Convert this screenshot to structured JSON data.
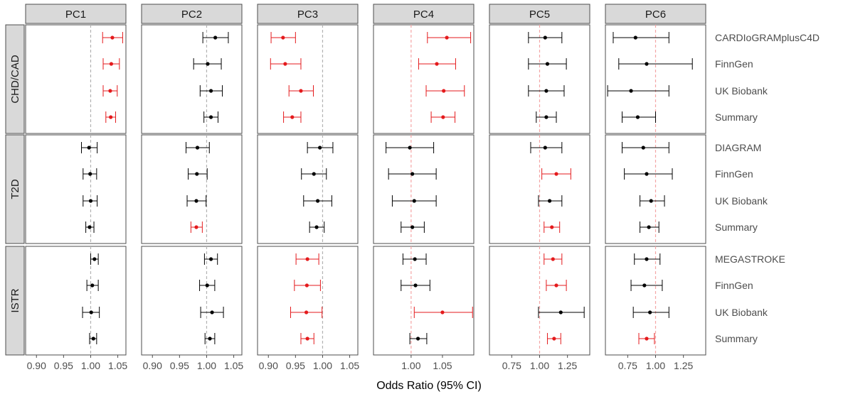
{
  "chart_data": {
    "type": "forest",
    "xlabel": "Odds Ratio (95% CI)",
    "reference_value": 1.0,
    "colors": {
      "significant": "#e41a1c",
      "non_significant": "#000000",
      "reference_line": "#f4a6a6",
      "reference_line_pc1_3": "#b3b3b3",
      "strip_fill": "#d9d9d9",
      "panel_border": "#4d4d4d"
    },
    "columns": [
      {
        "label": "PC1",
        "xlim": [
          0.88,
          1.065
        ],
        "ticks": [
          0.9,
          0.95,
          1.0,
          1.05
        ],
        "tick_labels": [
          "0.90",
          "0.95",
          "1.00",
          "1.05"
        ]
      },
      {
        "label": "PC2",
        "xlim": [
          0.88,
          1.065
        ],
        "ticks": [
          0.9,
          0.95,
          1.0,
          1.05
        ],
        "tick_labels": [
          "0.90",
          "0.95",
          "1.00",
          "1.05"
        ]
      },
      {
        "label": "PC3",
        "xlim": [
          0.88,
          1.065
        ],
        "ticks": [
          0.9,
          0.95,
          1.0,
          1.05
        ],
        "tick_labels": [
          "0.90",
          "0.95",
          "1.00",
          "1.05"
        ]
      },
      {
        "label": "PC4",
        "xlim": [
          0.94,
          1.1
        ],
        "ticks": [
          1.0,
          1.05
        ],
        "tick_labels": [
          "1.00",
          "1.05"
        ]
      },
      {
        "label": "PC5",
        "xlim": [
          0.55,
          1.45
        ],
        "ticks": [
          0.75,
          1.0,
          1.25
        ],
        "tick_labels": [
          "0.75",
          "1.00",
          "1.25"
        ]
      },
      {
        "label": "PC6",
        "xlim": [
          0.55,
          1.45
        ],
        "ticks": [
          0.75,
          1.0,
          1.25
        ],
        "tick_labels": [
          "0.75",
          "1.00",
          "1.25"
        ]
      }
    ],
    "rows": [
      {
        "label": "CHD/CAD",
        "studies": [
          "CARDIoGRAMplusC4D",
          "FinnGen",
          "UK Biobank",
          "Summary"
        ],
        "data": [
          [
            {
              "or": 1.04,
              "lo": 1.022,
              "hi": 1.059,
              "sig": true
            },
            {
              "or": 1.038,
              "lo": 1.023,
              "hi": 1.053,
              "sig": true
            },
            {
              "or": 1.036,
              "lo": 1.023,
              "hi": 1.049,
              "sig": true
            },
            {
              "or": 1.037,
              "lo": 1.028,
              "hi": 1.046,
              "sig": true
            }
          ],
          [
            {
              "or": 1.016,
              "lo": 0.993,
              "hi": 1.04,
              "sig": false
            },
            {
              "or": 1.002,
              "lo": 0.976,
              "hi": 1.027,
              "sig": false
            },
            {
              "or": 1.008,
              "lo": 0.988,
              "hi": 1.029,
              "sig": false
            },
            {
              "or": 1.008,
              "lo": 0.995,
              "hi": 1.021,
              "sig": false
            }
          ],
          [
            {
              "or": 0.927,
              "lo": 0.905,
              "hi": 0.95,
              "sig": true
            },
            {
              "or": 0.931,
              "lo": 0.904,
              "hi": 0.96,
              "sig": true
            },
            {
              "or": 0.96,
              "lo": 0.938,
              "hi": 0.983,
              "sig": true
            },
            {
              "or": 0.944,
              "lo": 0.928,
              "hi": 0.96,
              "sig": true
            }
          ],
          [
            {
              "or": 1.057,
              "lo": 1.026,
              "hi": 1.095,
              "sig": true
            },
            {
              "or": 1.041,
              "lo": 1.012,
              "hi": 1.071,
              "sig": true
            },
            {
              "or": 1.052,
              "lo": 1.024,
              "hi": 1.085,
              "sig": true
            },
            {
              "or": 1.051,
              "lo": 1.032,
              "hi": 1.07,
              "sig": true
            }
          ],
          [
            {
              "or": 1.05,
              "lo": 0.9,
              "hi": 1.2,
              "sig": false
            },
            {
              "or": 1.07,
              "lo": 0.9,
              "hi": 1.24,
              "sig": false
            },
            {
              "or": 1.06,
              "lo": 0.9,
              "hi": 1.22,
              "sig": false
            },
            {
              "or": 1.06,
              "lo": 0.97,
              "hi": 1.15,
              "sig": false
            }
          ],
          [
            {
              "or": 0.82,
              "lo": 0.62,
              "hi": 1.12,
              "sig": false
            },
            {
              "or": 0.92,
              "lo": 0.67,
              "hi": 1.33,
              "sig": false
            },
            {
              "or": 0.78,
              "lo": 0.57,
              "hi": 1.12,
              "sig": false
            },
            {
              "or": 0.84,
              "lo": 0.7,
              "hi": 1.0,
              "sig": false
            }
          ]
        ]
      },
      {
        "label": "T2D",
        "studies": [
          "DIAGRAM",
          "FinnGen",
          "UK Biobank",
          "Summary"
        ],
        "data": [
          [
            {
              "or": 0.997,
              "lo": 0.983,
              "hi": 1.012,
              "sig": false
            },
            {
              "or": 0.999,
              "lo": 0.986,
              "hi": 1.011,
              "sig": false
            },
            {
              "or": 1.0,
              "lo": 0.986,
              "hi": 1.012,
              "sig": false
            },
            {
              "or": 0.998,
              "lo": 0.991,
              "hi": 1.006,
              "sig": false
            }
          ],
          [
            {
              "or": 0.983,
              "lo": 0.962,
              "hi": 1.005,
              "sig": false
            },
            {
              "or": 0.982,
              "lo": 0.966,
              "hi": 1.001,
              "sig": false
            },
            {
              "or": 0.981,
              "lo": 0.964,
              "hi": 0.999,
              "sig": false
            },
            {
              "or": 0.981,
              "lo": 0.971,
              "hi": 0.992,
              "sig": true
            }
          ],
          [
            {
              "or": 0.995,
              "lo": 0.972,
              "hi": 1.019,
              "sig": false
            },
            {
              "or": 0.984,
              "lo": 0.961,
              "hi": 1.007,
              "sig": false
            },
            {
              "or": 0.991,
              "lo": 0.965,
              "hi": 1.017,
              "sig": false
            },
            {
              "or": 0.989,
              "lo": 0.976,
              "hi": 1.003,
              "sig": false
            }
          ],
          [
            {
              "or": 0.998,
              "lo": 0.96,
              "hi": 1.036,
              "sig": false
            },
            {
              "or": 1.002,
              "lo": 0.964,
              "hi": 1.04,
              "sig": false
            },
            {
              "or": 1.005,
              "lo": 0.97,
              "hi": 1.04,
              "sig": false
            },
            {
              "or": 1.002,
              "lo": 0.984,
              "hi": 1.021,
              "sig": false
            }
          ],
          [
            {
              "or": 1.05,
              "lo": 0.92,
              "hi": 1.2,
              "sig": false
            },
            {
              "or": 1.15,
              "lo": 1.02,
              "hi": 1.28,
              "sig": true
            },
            {
              "or": 1.09,
              "lo": 0.99,
              "hi": 1.2,
              "sig": false
            },
            {
              "or": 1.11,
              "lo": 1.04,
              "hi": 1.18,
              "sig": true
            }
          ],
          [
            {
              "or": 0.89,
              "lo": 0.7,
              "hi": 1.12,
              "sig": false
            },
            {
              "or": 0.92,
              "lo": 0.72,
              "hi": 1.15,
              "sig": false
            },
            {
              "or": 0.96,
              "lo": 0.86,
              "hi": 1.08,
              "sig": false
            },
            {
              "or": 0.94,
              "lo": 0.86,
              "hi": 1.03,
              "sig": false
            }
          ]
        ]
      },
      {
        "label": "ISTR",
        "studies": [
          "MEGASTROKE",
          "FinnGen",
          "UK Biobank",
          "Summary"
        ],
        "data": [
          [
            {
              "or": 1.007,
              "lo": 1.0,
              "hi": 1.014,
              "sig": false
            },
            {
              "or": 1.003,
              "lo": 0.993,
              "hi": 1.014,
              "sig": false
            },
            {
              "or": 1.001,
              "lo": 0.985,
              "hi": 1.016,
              "sig": false
            },
            {
              "or": 1.005,
              "lo": 0.998,
              "hi": 1.011,
              "sig": false
            }
          ],
          [
            {
              "or": 1.008,
              "lo": 0.996,
              "hi": 1.02,
              "sig": false
            },
            {
              "or": 1.001,
              "lo": 0.987,
              "hi": 1.015,
              "sig": false
            },
            {
              "or": 1.01,
              "lo": 0.989,
              "hi": 1.031,
              "sig": false
            },
            {
              "or": 1.006,
              "lo": 0.997,
              "hi": 1.015,
              "sig": false
            }
          ],
          [
            {
              "or": 0.972,
              "lo": 0.951,
              "hi": 0.993,
              "sig": true
            },
            {
              "or": 0.971,
              "lo": 0.948,
              "hi": 0.996,
              "sig": true
            },
            {
              "or": 0.97,
              "lo": 0.941,
              "hi": 0.999,
              "sig": true
            },
            {
              "or": 0.972,
              "lo": 0.96,
              "hi": 0.984,
              "sig": true
            }
          ],
          [
            {
              "or": 1.006,
              "lo": 0.987,
              "hi": 1.024,
              "sig": false
            },
            {
              "or": 1.007,
              "lo": 0.984,
              "hi": 1.03,
              "sig": false
            },
            {
              "or": 1.05,
              "lo": 1.005,
              "hi": 1.098,
              "sig": true
            },
            {
              "or": 1.011,
              "lo": 0.998,
              "hi": 1.025,
              "sig": false
            }
          ],
          [
            {
              "or": 1.12,
              "lo": 1.04,
              "hi": 1.2,
              "sig": true
            },
            {
              "or": 1.15,
              "lo": 1.06,
              "hi": 1.24,
              "sig": true
            },
            {
              "or": 1.19,
              "lo": 0.99,
              "hi": 1.4,
              "sig": false
            },
            {
              "or": 1.13,
              "lo": 1.07,
              "hi": 1.19,
              "sig": true
            }
          ],
          [
            {
              "or": 0.92,
              "lo": 0.81,
              "hi": 1.04,
              "sig": false
            },
            {
              "or": 0.9,
              "lo": 0.78,
              "hi": 1.06,
              "sig": false
            },
            {
              "or": 0.95,
              "lo": 0.8,
              "hi": 1.12,
              "sig": false
            },
            {
              "or": 0.92,
              "lo": 0.85,
              "hi": 0.99,
              "sig": true
            }
          ]
        ]
      }
    ]
  }
}
